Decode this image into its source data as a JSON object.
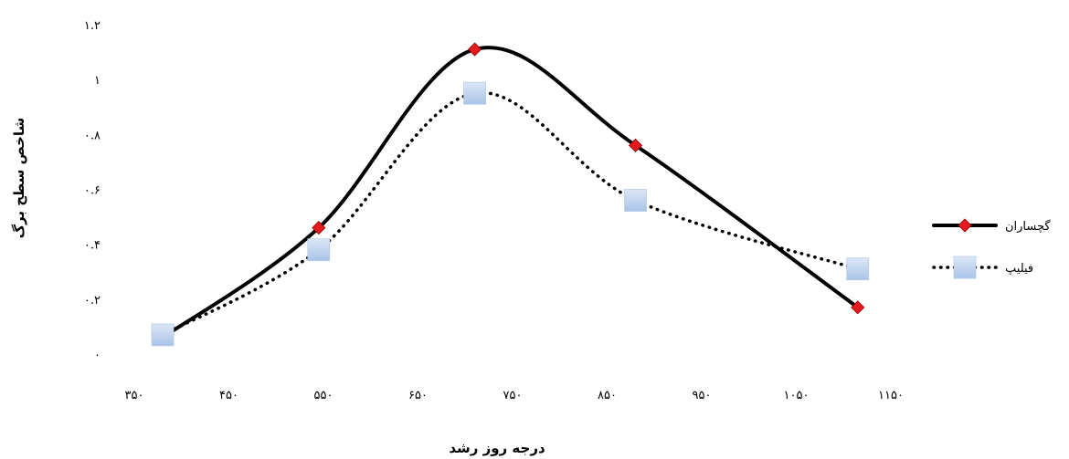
{
  "chart_data": {
    "type": "line",
    "title": "",
    "xlabel": "درجه روز رشد",
    "ylabel": "شاخص سطح برگ",
    "xlim": [
      350,
      1150
    ],
    "ylim": [
      0,
      1.2
    ],
    "x_ticks": [
      350,
      450,
      550,
      650,
      750,
      850,
      950,
      1050,
      1150
    ],
    "x_tick_labels": [
      "۳۵۰",
      "۴۵۰",
      "۵۵۰",
      "۶۵۰",
      "۷۵۰",
      "۸۵۰",
      "۹۵۰",
      "۱۰۵۰",
      "۱۱۵۰"
    ],
    "y_ticks": [
      0,
      0.2,
      0.4,
      0.6,
      0.8,
      1,
      1.2
    ],
    "y_tick_labels": [
      "۰",
      "۰.۲",
      "۰.۴",
      "۰.۶",
      "۰.۸",
      "۱",
      "۱.۲"
    ],
    "grid": false,
    "smooth": true,
    "legend_position": "right",
    "series": [
      {
        "name": "گچساران",
        "color": "#000000",
        "marker": "diamond",
        "marker_color": "#e41a1c",
        "line_style": "solid",
        "x": [
          380,
          545,
          710,
          880,
          1115
        ],
        "y": [
          0.06,
          0.46,
          1.11,
          0.76,
          0.17
        ]
      },
      {
        "name": "فیلیپ",
        "color": "#000000",
        "marker": "square",
        "marker_color": "#a9c4e8",
        "line_style": "dotted",
        "x": [
          380,
          545,
          710,
          880,
          1115
        ],
        "y": [
          0.07,
          0.38,
          0.95,
          0.56,
          0.31
        ]
      }
    ]
  }
}
